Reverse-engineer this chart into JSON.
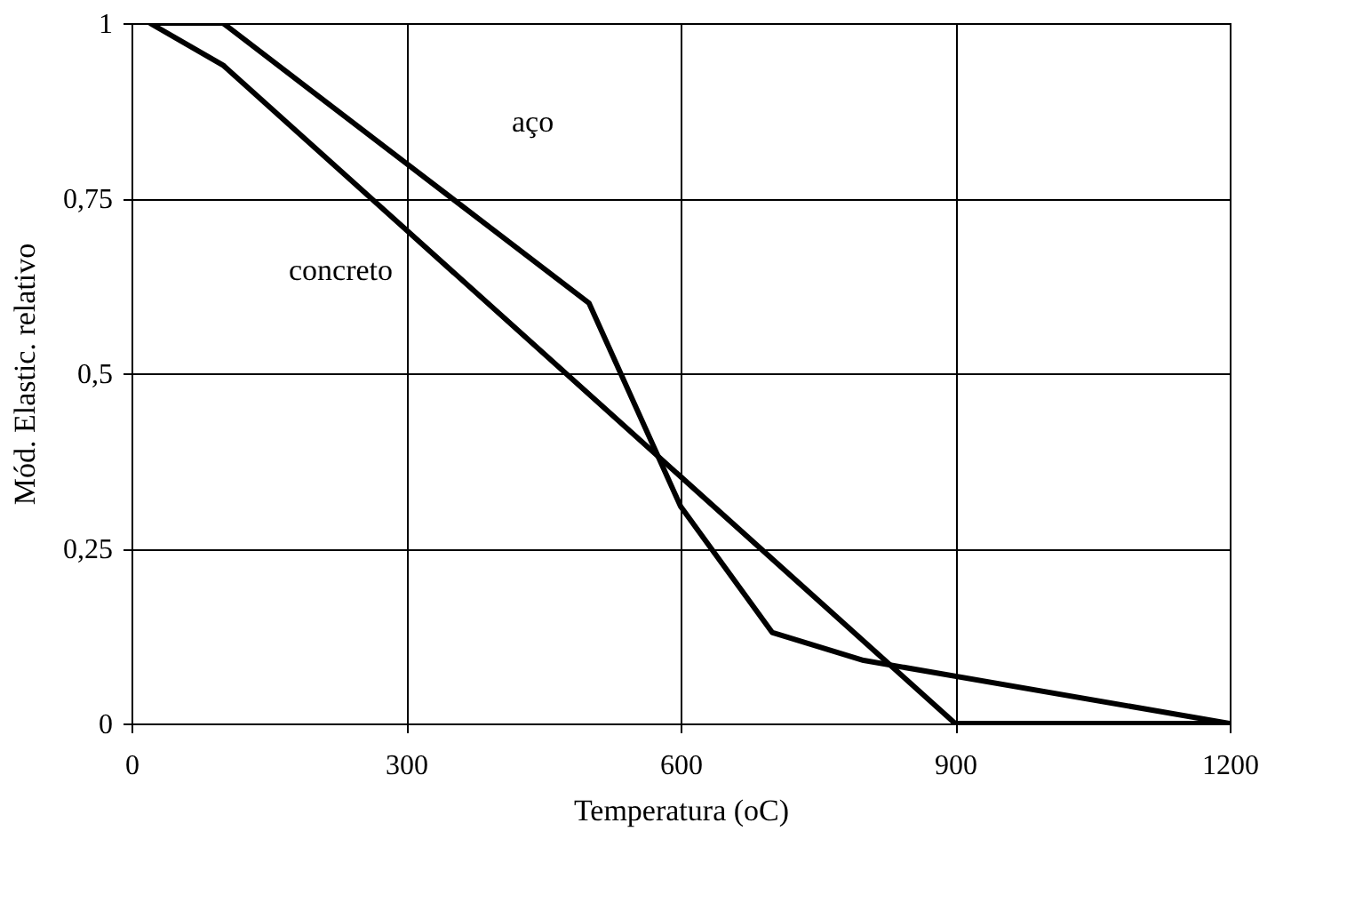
{
  "chart_data": {
    "type": "line",
    "xlabel": "Temperatura (oC)",
    "ylabel": "Mód. Elastic. relativo",
    "xlim": [
      0,
      1200
    ],
    "xticks": [
      0,
      300,
      600,
      900,
      1200
    ],
    "ylim": [
      0,
      1
    ],
    "yticks": [
      0,
      {
        "value": 0.25,
        "label": "0,25"
      },
      {
        "value": 0.5,
        "label": "0,5"
      },
      {
        "value": 0.75,
        "label": "0,75"
      },
      1
    ],
    "grid": true,
    "legend": false,
    "marker": "none",
    "line_style": "solid",
    "series": [
      {
        "name": "aço",
        "color": "#000000",
        "x": [
          20,
          100,
          200,
          300,
          400,
          500,
          600,
          700,
          800,
          1200
        ],
        "values": [
          1,
          1,
          0.9,
          0.8,
          0.7,
          0.6,
          0.31,
          0.13,
          0.09,
          0
        ]
      },
      {
        "name": "concreto",
        "color": "#000000",
        "x": [
          20,
          100,
          900,
          1200
        ],
        "values": [
          1,
          0.94,
          0,
          0
        ]
      }
    ]
  }
}
